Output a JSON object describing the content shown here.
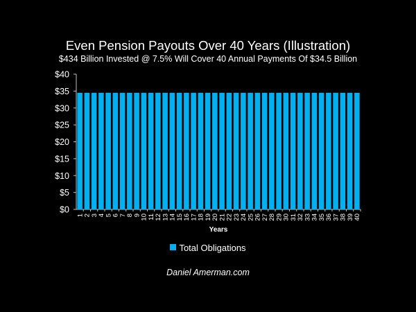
{
  "chart_data": {
    "type": "bar",
    "title": "Even Pension Payouts Over 40 Years (Illustration)",
    "subtitle": "$434 Billion Invested @ 7.5% Will Cover 40 Annual Payments Of $34.5 Billion",
    "xlabel": "Years",
    "ylabel": "",
    "ylim": [
      0,
      40
    ],
    "yticks": [
      "$0",
      "$5",
      "$10",
      "$15",
      "$20",
      "$25",
      "$30",
      "$35",
      "$40"
    ],
    "ytick_values": [
      0,
      5,
      10,
      15,
      20,
      25,
      30,
      35,
      40
    ],
    "categories": [
      "1",
      "2",
      "3",
      "4",
      "5",
      "6",
      "7",
      "8",
      "9",
      "10",
      "11",
      "12",
      "13",
      "14",
      "15",
      "16",
      "17",
      "18",
      "19",
      "20",
      "21",
      "22",
      "23",
      "24",
      "25",
      "26",
      "27",
      "28",
      "29",
      "30",
      "31",
      "32",
      "33",
      "34",
      "35",
      "36",
      "37",
      "38",
      "39",
      "40"
    ],
    "series": [
      {
        "name": "Total Obligations",
        "color": "#00b0f0",
        "values": [
          34.5,
          34.5,
          34.5,
          34.5,
          34.5,
          34.5,
          34.5,
          34.5,
          34.5,
          34.5,
          34.5,
          34.5,
          34.5,
          34.5,
          34.5,
          34.5,
          34.5,
          34.5,
          34.5,
          34.5,
          34.5,
          34.5,
          34.5,
          34.5,
          34.5,
          34.5,
          34.5,
          34.5,
          34.5,
          34.5,
          34.5,
          34.5,
          34.5,
          34.5,
          34.5,
          34.5,
          34.5,
          34.5,
          34.5,
          34.5
        ]
      }
    ],
    "grid": false,
    "legend_position": "bottom"
  },
  "footer": "Daniel Amerman.com"
}
